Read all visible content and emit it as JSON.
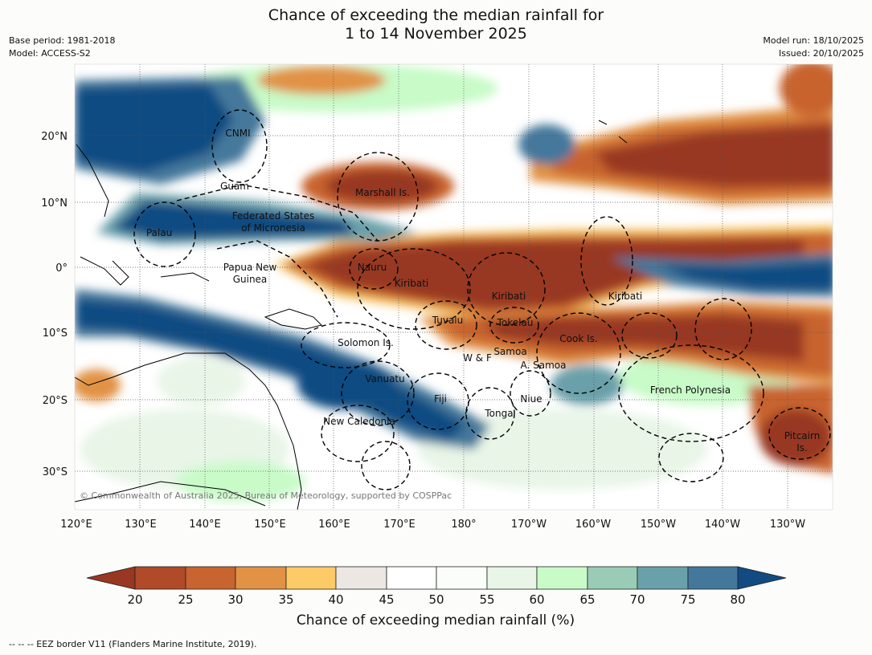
{
  "title_line1": "Chance of exceeding the median rainfall for",
  "title_line2": "1 to 14 November 2025",
  "meta": {
    "base_period": "Base period: 1981-2018",
    "model": "Model: ACCESS-S2",
    "model_run": "Model run: 18/10/2025",
    "issued": "Issued: 20/10/2025"
  },
  "lat_ticks": [
    "20°N",
    "10°N",
    "0°",
    "10°S",
    "20°S",
    "30°S"
  ],
  "lon_ticks": [
    "120°E",
    "130°E",
    "140°E",
    "150°E",
    "160°E",
    "170°E",
    "180°",
    "170°W",
    "160°W",
    "150°W",
    "140°W",
    "130°W"
  ],
  "regions": {
    "cnmi": "CNMI",
    "guam": "Guam",
    "marshall": "Marshall Is.",
    "fsm_1": "Federated States",
    "fsm_2": "of Micronesia",
    "palau": "Palau",
    "png_1": "Papua New",
    "png_2": "Guinea",
    "nauru": "Nauru",
    "kiribati_w": "Kiribati",
    "kiribati_c": "Kiribati",
    "kiribati_e": "Kiribati",
    "tuvalu": "Tuvalu",
    "tokelau": "Tokelau",
    "cook": "Cook Is.",
    "solomon": "Solomon Is.",
    "wf": "W & F",
    "samoa": "Samoa",
    "asamoa": "A. Samoa",
    "vanuatu": "Vanuatu",
    "fiji": "Fiji",
    "niue": "Niue",
    "tonga": "Tonga",
    "newcal": "New Caledonia",
    "frpoly": "French Polynesia",
    "pitcairn_1": "Pitcairn",
    "pitcairn_2": "Is."
  },
  "copyright": "© Commonwealth of Australia 2025, Bureau of Meteorology, supported by COSPPac",
  "colorbar": {
    "ticks": [
      "20",
      "25",
      "30",
      "35",
      "40",
      "45",
      "50",
      "55",
      "60",
      "65",
      "70",
      "75",
      "80"
    ],
    "colors": {
      "below_20": "#983722",
      "c20_25": "#b04a28",
      "c25_30": "#c8642f",
      "c30_35": "#e19245",
      "c35_40": "#fcca66",
      "c40_45": "#ece7e3",
      "c45_50": "#ffffff",
      "c50_55": "#fbfdfb",
      "c55_60": "#e8f5e7",
      "c60_65": "#c8fbc8",
      "c65_70": "#99cbb6",
      "c70_75": "#6aa0aa",
      "c75_80": "#44789b",
      "above_80": "#114b82"
    },
    "title": "Chance of exceeding median rainfall (%)"
  },
  "footer": "--  --  -- EEZ border V11 (Flanders Marine Institute, 2019)."
}
